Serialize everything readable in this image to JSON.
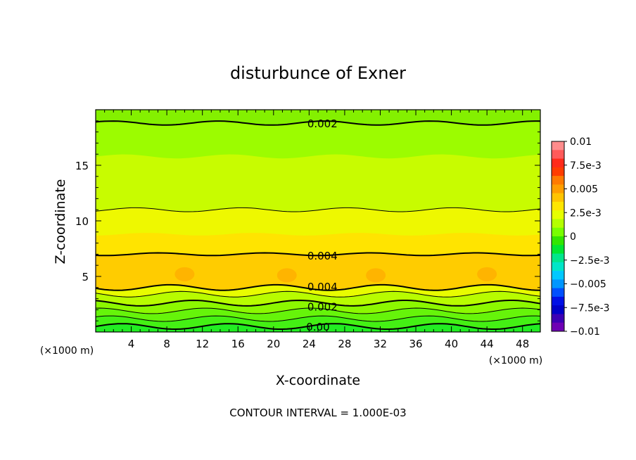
{
  "chart_data": {
    "type": "heatmap",
    "subtype": "filled-contour",
    "title": "disturbunce of Exner",
    "xlabel": "X-coordinate",
    "ylabel": "Z-coordinate",
    "x_unit_label_left": "(×1000 m)",
    "x_unit_label_right": "(×1000 m)",
    "xlim": [
      0,
      50
    ],
    "ylim": [
      0,
      20
    ],
    "x_ticks": [
      4,
      8,
      12,
      16,
      20,
      24,
      28,
      32,
      36,
      40,
      44,
      48
    ],
    "y_ticks": [
      5,
      10,
      15
    ],
    "footnote": "CONTOUR INTERVAL = 1.000E-03",
    "contour_interval": 0.001,
    "colorbar": {
      "min": -0.01,
      "max": 0.01,
      "tick_labels": [
        "0.01",
        "7.5e-3",
        "0.005",
        "2.5e-3",
        "0",
        "−2.5e-3",
        "−0.005",
        "−7.5e-3",
        "−0.01"
      ],
      "tick_values": [
        0.01,
        0.0075,
        0.005,
        0.0025,
        0,
        -0.0025,
        -0.005,
        -0.0075,
        -0.01
      ],
      "colors_top_to_bottom": [
        "#ff8c8c",
        "#ff5a5a",
        "#ff2a1a",
        "#ff3c00",
        "#ff7a00",
        "#ff9e00",
        "#ffc400",
        "#ffe600",
        "#e6ff00",
        "#b4ff00",
        "#78ff00",
        "#32e600",
        "#00e632",
        "#00e68c",
        "#00e6c8",
        "#00c8ff",
        "#0096ff",
        "#0050ff",
        "#0010e6",
        "#0000c8",
        "#3c00b4",
        "#6e00b4"
      ]
    },
    "contour_labels": [
      {
        "text": "0.002",
        "x": 25.5,
        "z": 18.8
      },
      {
        "text": "0.004",
        "x": 25.5,
        "z": 6.9
      },
      {
        "text": "0.004",
        "x": 25.5,
        "z": 4.1
      },
      {
        "text": "0.002",
        "x": 25.5,
        "z": 2.3
      },
      {
        "text": "0.00",
        "x": 25.0,
        "z": 0.5
      }
    ],
    "field_bands_bottom_to_top": [
      {
        "z_top": 0.5,
        "value_range": [
          0.0,
          0.0005
        ],
        "color": "#22ee22"
      },
      {
        "z_top": 1.2,
        "value_range": [
          0.0005,
          0.001
        ],
        "color": "#44f014"
      },
      {
        "z_top": 1.9,
        "value_range": [
          0.001,
          0.0015
        ],
        "color": "#66f40a"
      },
      {
        "z_top": 2.6,
        "value_range": [
          0.0015,
          0.002
        ],
        "color": "#8cf800"
      },
      {
        "z_top": 3.4,
        "value_range": [
          0.002,
          0.0025
        ],
        "color": "#b8fc00"
      },
      {
        "z_top": 4.0,
        "value_range": [
          0.003,
          0.0035
        ],
        "color": "#e8fc00"
      },
      {
        "z_top": 7.0,
        "value_range": [
          0.004,
          0.0045
        ],
        "color": "#ffcc00"
      },
      {
        "z_top": 8.8,
        "value_range": [
          0.0035,
          0.004
        ],
        "color": "#ffe400"
      },
      {
        "z_top": 11.0,
        "value_range": [
          0.003,
          0.0035
        ],
        "color": "#eef800"
      },
      {
        "z_top": 15.8,
        "value_range": [
          0.0025,
          0.003
        ],
        "color": "#c8fc00"
      },
      {
        "z_top": 18.8,
        "value_range": [
          0.002,
          0.0025
        ],
        "color": "#9cfc00"
      },
      {
        "z_top": 20.0,
        "value_range": [
          0.0015,
          0.002
        ],
        "color": "#84f000"
      }
    ],
    "local_maxima": [
      {
        "x": 10.0,
        "z": 5.2
      },
      {
        "x": 21.5,
        "z": 5.1
      },
      {
        "x": 31.5,
        "z": 5.1
      },
      {
        "x": 44.0,
        "z": 5.2
      }
    ]
  }
}
